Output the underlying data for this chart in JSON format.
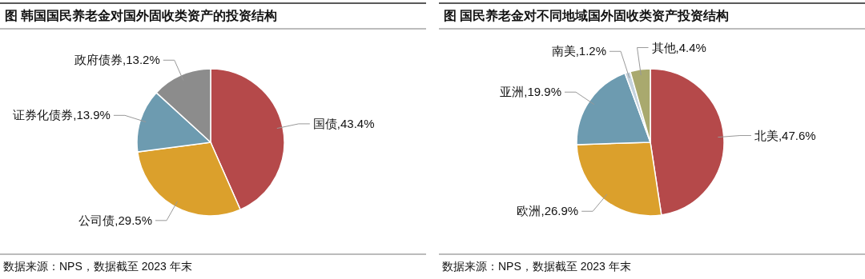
{
  "chart_data": [
    {
      "type": "pie",
      "title": "图  韩国国民养老金对国外固收类资产的投资结构",
      "categories": [
        "国债",
        "公司债",
        "证券化债券",
        "政府债券"
      ],
      "values": [
        43.4,
        29.5,
        13.9,
        13.2
      ],
      "value_labels": [
        "43.4%",
        "29.5%",
        "13.9%",
        "13.2%"
      ],
      "colors": [
        "#b5494a",
        "#dba02c",
        "#6d9bb0",
        "#8c8c8c"
      ],
      "annotations": [
        "数据来源：NPS，数据截至 2023 年末"
      ]
    },
    {
      "type": "pie",
      "title": "图  国民养老金对不同地域国外固收类资产投资结构",
      "categories": [
        "北美",
        "欧洲",
        "亚洲",
        "南美",
        "其他"
      ],
      "values": [
        47.6,
        26.9,
        19.9,
        1.2,
        4.4
      ],
      "value_labels": [
        "47.6%",
        "26.9%",
        "19.9%",
        "1.2%",
        "4.4%"
      ],
      "colors": [
        "#b5494a",
        "#dba02c",
        "#6d9bb0",
        "#c5d3de",
        "#a9a96e"
      ],
      "annotations": [
        "数据来源：NPS，数据截至 2023 年末"
      ]
    }
  ]
}
